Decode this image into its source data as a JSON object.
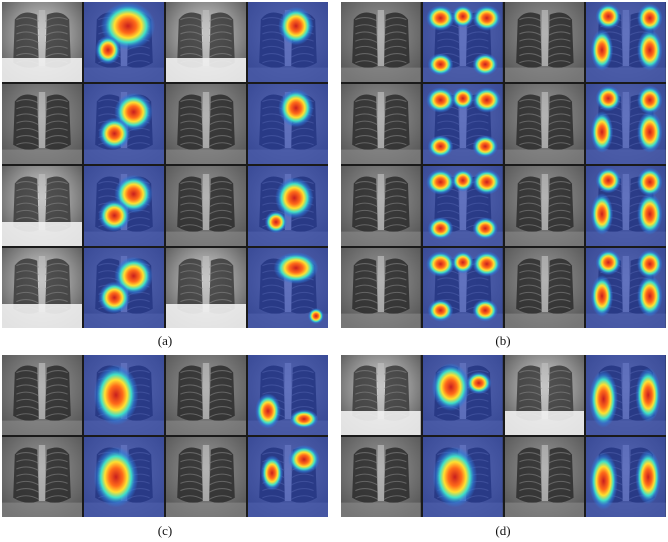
{
  "captions": {
    "a": "(a)",
    "b": "(b)",
    "c": "(c)",
    "d": "(d)"
  },
  "panels": {
    "a": {
      "cells": [
        [
          "xray-bright",
          "heat-rightupper",
          "xray-bright",
          "heat-leftupper"
        ],
        [
          "xray",
          "heat-rightmid",
          "xray",
          "heat-leftupper"
        ],
        [
          "xray-bright",
          "heat-rightmid",
          "xray",
          "heat-leftmid"
        ],
        [
          "xray-bright",
          "heat-rightmid",
          "xray-bright",
          "heat-top"
        ]
      ]
    },
    "b": {
      "cells": [
        [
          "xray",
          "heat-multi",
          "xray",
          "heat-wide"
        ],
        [
          "xray",
          "heat-multi",
          "xray",
          "heat-wide"
        ],
        [
          "xray",
          "heat-multi",
          "xray",
          "heat-wide"
        ],
        [
          "xray",
          "heat-multi",
          "xray",
          "heat-wide"
        ]
      ]
    },
    "c": {
      "cells": [
        [
          "xray",
          "heat-center",
          "xray",
          "heat-leftlow"
        ],
        [
          "xray",
          "heat-center",
          "xray",
          "heat-topright"
        ]
      ]
    },
    "d": {
      "cells": [
        [
          "xray-bright",
          "heat-topleft",
          "xray-bright",
          "heat-sides"
        ],
        [
          "xray",
          "heat-center",
          "xray",
          "heat-sides"
        ]
      ]
    }
  }
}
